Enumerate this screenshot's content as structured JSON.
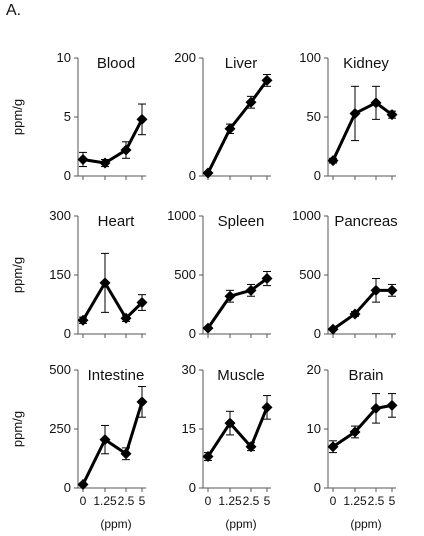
{
  "figure": {
    "panel_label": "A.",
    "y_unit_label": "ppm/g",
    "x_unit_label": "(ppm)"
  },
  "chart_data": [
    {
      "type": "line",
      "title": "Blood",
      "x": [
        0,
        1.25,
        2.5,
        5
      ],
      "x_tick_labels": [
        "0",
        "1.25",
        "2.5",
        "5"
      ],
      "ylim": [
        0,
        10
      ],
      "y_ticks": [
        0,
        5,
        10
      ],
      "series": [
        {
          "values": [
            1.4,
            1.1,
            2.2,
            4.8
          ],
          "errors": [
            0.6,
            0.3,
            0.7,
            1.3
          ]
        }
      ]
    },
    {
      "type": "line",
      "title": "Liver",
      "x": [
        0,
        1.25,
        2.5,
        5
      ],
      "x_tick_labels": [
        "0",
        "1.25",
        "2.5",
        "5"
      ],
      "ylim": [
        0,
        200
      ],
      "y_ticks": [
        0,
        200
      ],
      "series": [
        {
          "values": [
            5,
            80,
            125,
            162
          ],
          "errors": [
            0,
            8,
            10,
            10
          ]
        }
      ]
    },
    {
      "type": "line",
      "title": "Kidney",
      "x": [
        0,
        1.25,
        2.5,
        5
      ],
      "x_tick_labels": [
        "0",
        "1.25",
        "2.5",
        "5"
      ],
      "ylim": [
        0,
        100
      ],
      "y_ticks": [
        0,
        50,
        100
      ],
      "series": [
        {
          "values": [
            13,
            53,
            62,
            52
          ],
          "errors": [
            2,
            23,
            14,
            3
          ]
        }
      ]
    },
    {
      "type": "line",
      "title": "Heart",
      "x": [
        0,
        1.25,
        2.5,
        5
      ],
      "x_tick_labels": [
        "0",
        "1.25",
        "2.5",
        "5"
      ],
      "ylim": [
        0,
        300
      ],
      "y_ticks": [
        0,
        150,
        300
      ],
      "series": [
        {
          "values": [
            35,
            130,
            40,
            80
          ],
          "errors": [
            8,
            75,
            8,
            20
          ]
        }
      ]
    },
    {
      "type": "line",
      "title": "Spleen",
      "x": [
        0,
        1.25,
        2.5,
        5
      ],
      "x_tick_labels": [
        "0",
        "1.25",
        "2.5",
        "5"
      ],
      "ylim": [
        0,
        1000
      ],
      "y_ticks": [
        0,
        500,
        1000
      ],
      "series": [
        {
          "values": [
            50,
            320,
            370,
            470
          ],
          "errors": [
            0,
            50,
            50,
            60
          ]
        }
      ]
    },
    {
      "type": "line",
      "title": "Pancreas",
      "x": [
        0,
        1.25,
        2.5,
        5
      ],
      "x_tick_labels": [
        "0",
        "1.25",
        "2.5",
        "5"
      ],
      "ylim": [
        0,
        1000
      ],
      "y_ticks": [
        0,
        500,
        1000
      ],
      "series": [
        {
          "values": [
            40,
            170,
            370,
            370
          ],
          "errors": [
            0,
            20,
            100,
            50
          ]
        }
      ]
    },
    {
      "type": "line",
      "title": "Intestine",
      "x": [
        0,
        1.25,
        2.5,
        5
      ],
      "x_tick_labels": [
        "0",
        "1.25",
        "2.5",
        "5"
      ],
      "ylim": [
        0,
        500
      ],
      "y_ticks": [
        0,
        250,
        500
      ],
      "series": [
        {
          "values": [
            15,
            205,
            145,
            365
          ],
          "errors": [
            0,
            60,
            25,
            65
          ]
        }
      ]
    },
    {
      "type": "line",
      "title": "Muscle",
      "x": [
        0,
        1.25,
        2.5,
        5
      ],
      "x_tick_labels": [
        "0",
        "1.25",
        "2.5",
        "5"
      ],
      "ylim": [
        0,
        30
      ],
      "y_ticks": [
        0,
        15,
        30
      ],
      "series": [
        {
          "values": [
            8,
            16.5,
            10.5,
            20.5
          ],
          "errors": [
            1,
            3,
            1,
            3
          ]
        }
      ]
    },
    {
      "type": "line",
      "title": "Brain",
      "x": [
        0,
        1.25,
        2.5,
        5
      ],
      "x_tick_labels": [
        "0",
        "1.25",
        "2.5",
        "5"
      ],
      "ylim": [
        0,
        20
      ],
      "y_ticks": [
        0,
        10,
        20
      ],
      "series": [
        {
          "values": [
            7,
            9.5,
            13.5,
            14
          ],
          "errors": [
            1,
            1,
            2.5,
            2
          ]
        }
      ]
    }
  ]
}
